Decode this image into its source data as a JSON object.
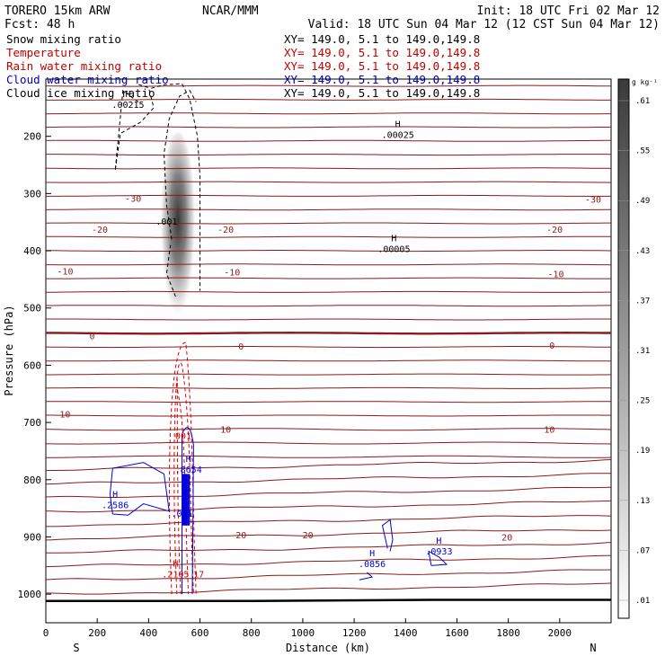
{
  "header": {
    "model": "TORERO  15km ARW",
    "center": "NCAR/MMM",
    "init": "Init: 18 UTC Fri 02 Mar 12",
    "fcst": "Fcst:   48 h",
    "valid": "Valid: 18 UTC Sun 04 Mar 12 (12 CST Sun 04 Mar 12)"
  },
  "fields": [
    {
      "name": "Snow mixing ratio",
      "xy": "XY= 149.0,   5.1 to 149.0,149.8",
      "color": "#000000"
    },
    {
      "name": "Temperature",
      "xy": "XY= 149.0,   5.1 to 149.0,149.8",
      "color": "#c00000"
    },
    {
      "name": "Rain water mixing ratio",
      "xy": "XY= 149.0,   5.1 to 149.0,149.8",
      "color": "#c00000"
    },
    {
      "name": "Cloud water mixing ratio",
      "xy": "XY= 149.0,   5.1 to 149.0,149.8",
      "color": "#0000c0"
    },
    {
      "name": "Cloud ice mixing ratio",
      "xy": "XY= 149.0,   5.1 to 149.0,149.8",
      "color": "#000000"
    }
  ],
  "colors": {
    "temperature": "#8b1a1a",
    "rain": "#dd0000",
    "cloud_water": "#0000dd",
    "ice": "#000000",
    "frame": "#000000"
  },
  "chart_data": {
    "type": "cross-section",
    "xlabel": "Distance (km)",
    "ylabel": "Pressure (hPa)",
    "xlim": [
      0,
      2200
    ],
    "ylim": [
      1050,
      100
    ],
    "x_ticks": [
      0,
      200,
      400,
      600,
      800,
      1000,
      1200,
      1400,
      1600,
      1800,
      2000
    ],
    "y_ticks": [
      200,
      300,
      400,
      500,
      600,
      700,
      800,
      900,
      1000
    ],
    "endpoints": {
      "left": "S",
      "right": "N"
    },
    "colorbar": {
      "unit": "g kg⁻¹",
      "labels": [
        ".01",
        ".07",
        ".13",
        ".19",
        ".25",
        ".31",
        ".37",
        ".43",
        ".49",
        ".55",
        ".61"
      ]
    },
    "isotherm_labels": [
      {
        "text": "-30",
        "x": 340,
        "p": 308
      },
      {
        "text": "-30",
        "x": 2130,
        "p": 310
      },
      {
        "text": "-20",
        "x": 210,
        "p": 362
      },
      {
        "text": "-20",
        "x": 700,
        "p": 362
      },
      {
        "text": "-20",
        "x": 1980,
        "p": 362
      },
      {
        "text": "-10",
        "x": 75,
        "p": 435
      },
      {
        "text": "-10",
        "x": 725,
        "p": 437
      },
      {
        "text": "-10",
        "x": 1985,
        "p": 440
      },
      {
        "text": "0",
        "x": 180,
        "p": 548
      },
      {
        "text": "0",
        "x": 760,
        "p": 566
      },
      {
        "text": "0",
        "x": 1970,
        "p": 565
      },
      {
        "text": "10",
        "x": 75,
        "p": 685
      },
      {
        "text": "10",
        "x": 700,
        "p": 712
      },
      {
        "text": "10",
        "x": 1960,
        "p": 712
      },
      {
        "text": "20",
        "x": 760,
        "p": 896
      },
      {
        "text": "20",
        "x": 1020,
        "p": 896
      },
      {
        "text": "20",
        "x": 1795,
        "p": 900
      }
    ],
    "extrema": [
      {
        "letter": "H",
        "value": ".00215",
        "x": 320,
        "p": 138,
        "series": "ice"
      },
      {
        "letter": "H",
        "value": ".00025",
        "x": 1370,
        "p": 190,
        "series": "ice"
      },
      {
        "letter": "H",
        "value": ".00005",
        "x": 1355,
        "p": 390,
        "series": "ice"
      },
      {
        "letter": "",
        "value": ".001",
        "x": 470,
        "p": 342,
        "series": "ice"
      },
      {
        "letter": "H",
        "value": ".8654",
        "x": 555,
        "p": 775,
        "series": "cloud_water"
      },
      {
        "letter": "H",
        "value": ".2586",
        "x": 270,
        "p": 837,
        "series": "cloud_water"
      },
      {
        "letter": "",
        "value": ".001",
        "x": 530,
        "p": 852,
        "series": "cloud_water"
      },
      {
        "letter": "H",
        "value": ".0856",
        "x": 1270,
        "p": 940,
        "series": "cloud_water"
      },
      {
        "letter": "H",
        "value": ".0933",
        "x": 1530,
        "p": 918,
        "series": "cloud_water"
      },
      {
        "letter": "H",
        "value": ".2105",
        "x": 505,
        "p": 958,
        "series": "rain"
      },
      {
        "letter": "",
        "value": "17",
        "x": 595,
        "p": 958,
        "series": "rain"
      },
      {
        "letter": "",
        "value": "001",
        "x": 535,
        "p": 716,
        "series": "rain"
      }
    ]
  }
}
